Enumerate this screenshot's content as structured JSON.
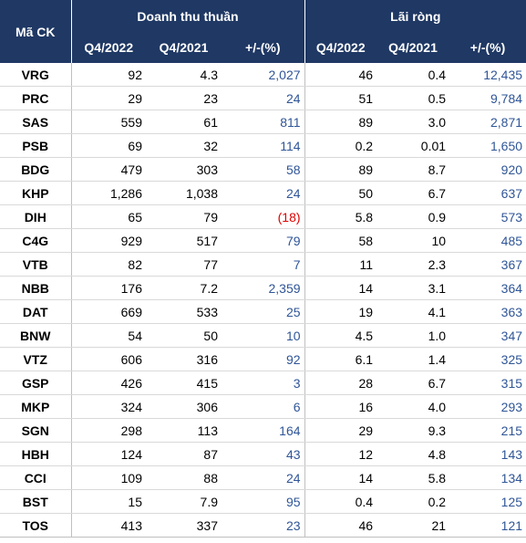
{
  "table": {
    "header": {
      "code": "Mã CK",
      "groups": [
        {
          "title": "Doanh thu thuần",
          "columns": [
            "Q4/2022",
            "Q4/2021",
            "+/-(%)"
          ]
        },
        {
          "title": "Lãi ròng",
          "columns": [
            "Q4/2022",
            "Q4/2021",
            "+/-(%)"
          ]
        }
      ]
    },
    "rows": [
      [
        "VRG",
        "92",
        "4.3",
        "2,027",
        "46",
        "0.4",
        "12,435"
      ],
      [
        "PRC",
        "29",
        "23",
        "24",
        "51",
        "0.5",
        "9,784"
      ],
      [
        "SAS",
        "559",
        "61",
        "811",
        "89",
        "3.0",
        "2,871"
      ],
      [
        "PSB",
        "69",
        "32",
        "114",
        "0.2",
        "0.01",
        "1,650"
      ],
      [
        "BDG",
        "479",
        "303",
        "58",
        "89",
        "8.7",
        "920"
      ],
      [
        "KHP",
        "1,286",
        "1,038",
        "24",
        "50",
        "6.7",
        "637"
      ],
      [
        "DIH",
        "65",
        "79",
        "(18)",
        "5.8",
        "0.9",
        "573"
      ],
      [
        "C4G",
        "929",
        "517",
        "79",
        "58",
        "10",
        "485"
      ],
      [
        "VTB",
        "82",
        "77",
        "7",
        "11",
        "2.3",
        "367"
      ],
      [
        "NBB",
        "176",
        "7.2",
        "2,359",
        "14",
        "3.1",
        "364"
      ],
      [
        "DAT",
        "669",
        "533",
        "25",
        "19",
        "4.1",
        "363"
      ],
      [
        "BNW",
        "54",
        "50",
        "10",
        "4.5",
        "1.0",
        "347"
      ],
      [
        "VTZ",
        "606",
        "316",
        "92",
        "6.1",
        "1.4",
        "325"
      ],
      [
        "GSP",
        "426",
        "415",
        "3",
        "28",
        "6.7",
        "315"
      ],
      [
        "MKP",
        "324",
        "306",
        "6",
        "16",
        "4.0",
        "293"
      ],
      [
        "SGN",
        "298",
        "113",
        "164",
        "29",
        "9.3",
        "215"
      ],
      [
        "HBH",
        "124",
        "87",
        "43",
        "12",
        "4.8",
        "143"
      ],
      [
        "CCI",
        "109",
        "88",
        "24",
        "14",
        "5.8",
        "134"
      ],
      [
        "BST",
        "15",
        "7.9",
        "95",
        "0.4",
        "0.2",
        "125"
      ],
      [
        "TOS",
        "413",
        "337",
        "23",
        "46",
        "21",
        "121"
      ]
    ]
  }
}
